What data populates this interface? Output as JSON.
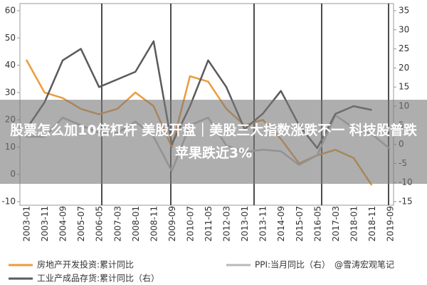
{
  "chart_data": {
    "type": "line",
    "categories": [
      "2003-01",
      "2003-11",
      "2004-09",
      "2005-07",
      "2006-05",
      "2007-03",
      "2008-01",
      "2008-11",
      "2009-09",
      "2010-07",
      "2011-05",
      "2012-03",
      "2013-01",
      "2013-11",
      "2014-09",
      "2015-07",
      "2016-05",
      "2017-03",
      "2018-01",
      "2018-11",
      "2019-09"
    ],
    "ylim": [
      -10,
      60
    ],
    "yticks": [
      -10,
      0,
      10,
      20,
      30,
      40,
      50,
      60
    ],
    "y2lim": [
      -15,
      35
    ],
    "y2ticks": [
      -15,
      -10,
      -5,
      0,
      5,
      10,
      15,
      20,
      25,
      30,
      35
    ],
    "series": [
      {
        "name": "房地产开发投资:累计同比",
        "color": "#ed9b3a",
        "values": [
          42,
          30,
          28,
          24,
          22,
          24,
          30,
          25,
          10,
          36,
          34,
          24,
          18,
          20,
          13,
          4,
          7,
          9,
          6,
          -4,
          null
        ]
      },
      {
        "name": "PPI:当月同比（右）",
        "color": "#b8b8b8",
        "axis": "y2",
        "values": [
          2,
          2,
          7,
          5,
          3,
          3,
          6,
          2,
          -7,
          5,
          7,
          -0.3,
          -2,
          -1.4,
          -1.8,
          -5.4,
          -2.8,
          7.6,
          4.3,
          2.7,
          -1.2
        ]
      },
      {
        "name": "工业产成品存货:累计同比（右）",
        "color": "#5a5a5a",
        "axis": "y2",
        "values": [
          4,
          11,
          22,
          25,
          15,
          17,
          19,
          27,
          0,
          10,
          22,
          15,
          4,
          8,
          14,
          5,
          -1,
          8,
          10,
          9,
          null
        ]
      }
    ],
    "legend": "bottom"
  },
  "banner": {
    "text": "股票怎么加10倍杠杆 美股开盘｜美股三大指数涨跌不一 科技股普跌 苹果跌近3%"
  },
  "watermark": "@雪涛宏观笔记"
}
